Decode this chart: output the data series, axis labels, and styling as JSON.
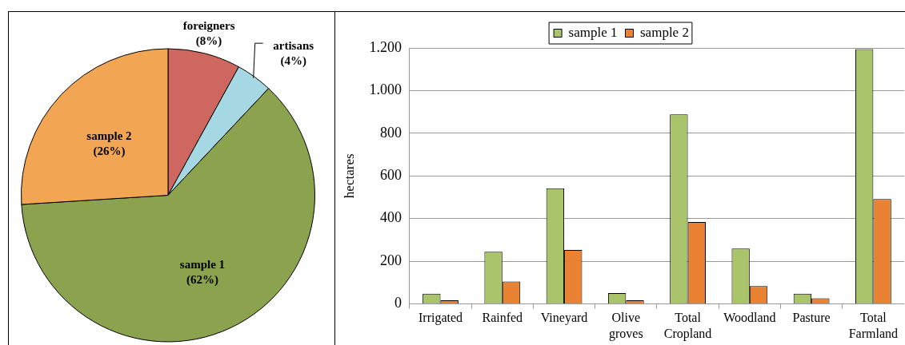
{
  "chart_data": [
    {
      "type": "pie",
      "categories": [
        "foreigners",
        "artisans",
        "sample 1",
        "sample 2"
      ],
      "values": [
        8,
        4,
        62,
        26
      ],
      "colors": [
        "#cd6760",
        "#a5d8e3",
        "#8ba34e",
        "#f2a654"
      ],
      "value_labels": [
        "(8%)",
        "(4%)",
        "(62%)",
        "(26%)"
      ]
    },
    {
      "type": "bar",
      "categories": [
        "Irrigated",
        "Rainfed",
        "Vineyard",
        "Olive groves",
        "Total Cropland",
        "Woodland",
        "Pasture",
        "Total Farmland"
      ],
      "series": [
        {
          "name": "sample 1",
          "color": "#a9c46b",
          "values": [
            48,
            245,
            542,
            51,
            888,
            260,
            48,
            1194
          ]
        },
        {
          "name": "sample 2",
          "color": "#ea8234",
          "values": [
            17,
            105,
            253,
            17,
            384,
            84,
            27,
            492
          ]
        }
      ],
      "ylabel": "hectares",
      "ylim": [
        0,
        1200
      ],
      "yticks": [
        0,
        200,
        400,
        600,
        800,
        {
          "value": 1000,
          "label": "1.000"
        },
        {
          "value": 1200,
          "label": "1.200"
        }
      ],
      "grid": "y",
      "legend": "top"
    }
  ]
}
